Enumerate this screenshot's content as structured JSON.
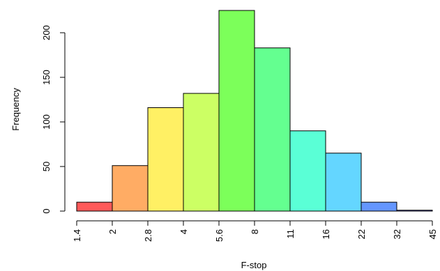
{
  "chart_data": {
    "type": "bar",
    "title": "",
    "xlabel": "F-stop",
    "ylabel": "Frequency",
    "categories": [
      "1.4–2",
      "2–2.8",
      "2.8–4",
      "4–5.6",
      "5.6–8",
      "8–11",
      "11–16",
      "16–22",
      "22–32",
      "32–45"
    ],
    "bin_edges": [
      "1.4",
      "2",
      "2.8",
      "4",
      "5.6",
      "8",
      "11",
      "16",
      "22",
      "32",
      "45"
    ],
    "values": [
      10,
      51,
      116,
      132,
      225,
      183,
      90,
      65,
      10,
      1
    ],
    "colors": [
      "#FF5A5A",
      "#FFAC64",
      "#FFF064",
      "#CCFF64",
      "#7CFF5A",
      "#64FF90",
      "#5AFFD6",
      "#64D6FF",
      "#6496FF",
      "#7070FF"
    ],
    "yticks": [
      0,
      50,
      100,
      150,
      200
    ],
    "ylim": [
      0,
      225
    ],
    "grid": false,
    "legend": "none"
  }
}
